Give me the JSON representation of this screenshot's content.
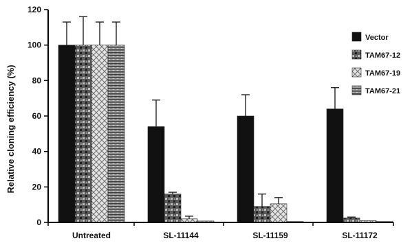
{
  "chart_data": {
    "type": "bar",
    "title": "",
    "xlabel": "",
    "ylabel": "Relative cloning efficiency (%)",
    "ylim": [
      0,
      120
    ],
    "yticks": [
      0,
      20,
      40,
      60,
      80,
      100,
      120
    ],
    "grid": false,
    "legend_position": "right",
    "categories": [
      "Untreated",
      "SL-11144",
      "SL-11159",
      "SL-11172"
    ],
    "series": [
      {
        "name": "Vector",
        "color": "#111111",
        "values": [
          100,
          54,
          60,
          64
        ],
        "errors": [
          13,
          15,
          12,
          12
        ]
      },
      {
        "name": "TAM67-12",
        "color": "#555555",
        "values": [
          100,
          16,
          9,
          2.5
        ],
        "errors": [
          16,
          1,
          7,
          0.5
        ]
      },
      {
        "name": "TAM67-19",
        "color": "#d8d8d8",
        "values": [
          100,
          2,
          10.5,
          1
        ],
        "errors": [
          13,
          1.5,
          3.5,
          0
        ]
      },
      {
        "name": "TAM67-21",
        "color": "#8a8a8a",
        "values": [
          100,
          0.8,
          0.5,
          0.5
        ],
        "errors": [
          13,
          0,
          0,
          0
        ]
      }
    ]
  }
}
